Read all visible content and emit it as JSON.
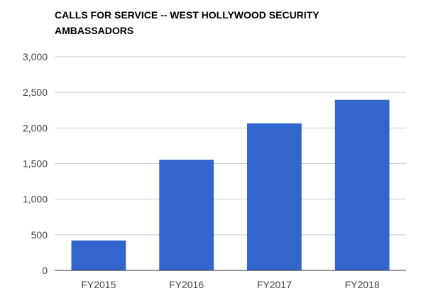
{
  "chart_data": {
    "type": "bar",
    "title": "CALLS FOR SERVICE -- WEST HOLLYWOOD SECURITY AMBASSADORS",
    "categories": [
      "FY2015",
      "FY2016",
      "FY2017",
      "FY2018"
    ],
    "values": [
      420,
      1555,
      2065,
      2395
    ],
    "xlabel": "",
    "ylabel": "",
    "ylim": [
      0,
      3000
    ],
    "yticks": [
      0,
      500,
      1000,
      1500,
      2000,
      2500,
      3000
    ],
    "ytick_labels": [
      "0",
      "500",
      "1,000",
      "1,500",
      "2,000",
      "2,500",
      "3,000"
    ],
    "grid": true,
    "legend": "none",
    "bar_color": "#3366cc"
  }
}
